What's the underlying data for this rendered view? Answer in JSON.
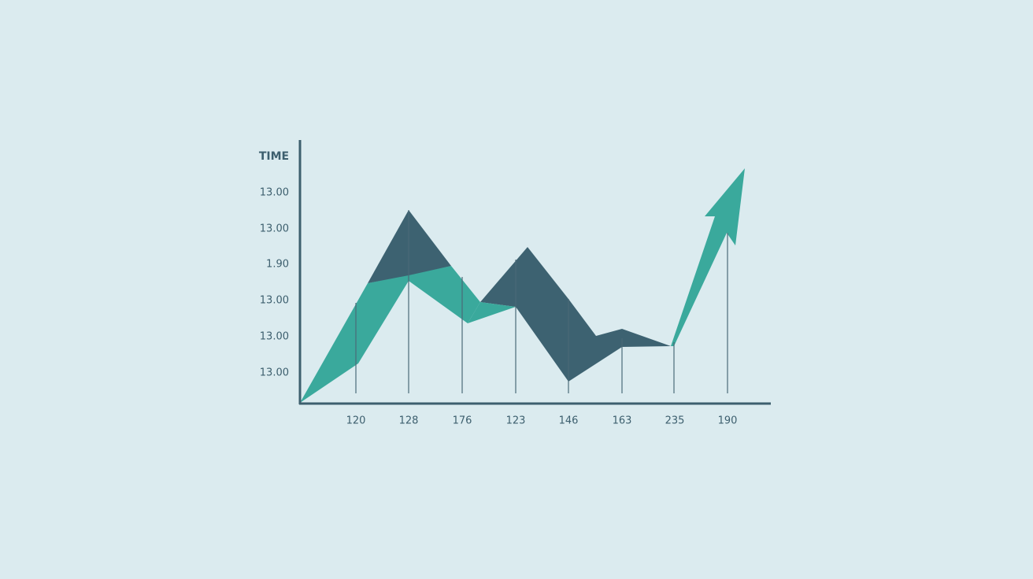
{
  "axis_title": "TIME",
  "y_labels": [
    "13.00",
    "13.00",
    "1.90",
    "13.00",
    "13.00",
    "13.00"
  ],
  "x_labels": [
    "120",
    "128",
    "176",
    "123",
    "146",
    "163",
    "235",
    "190"
  ]
}
